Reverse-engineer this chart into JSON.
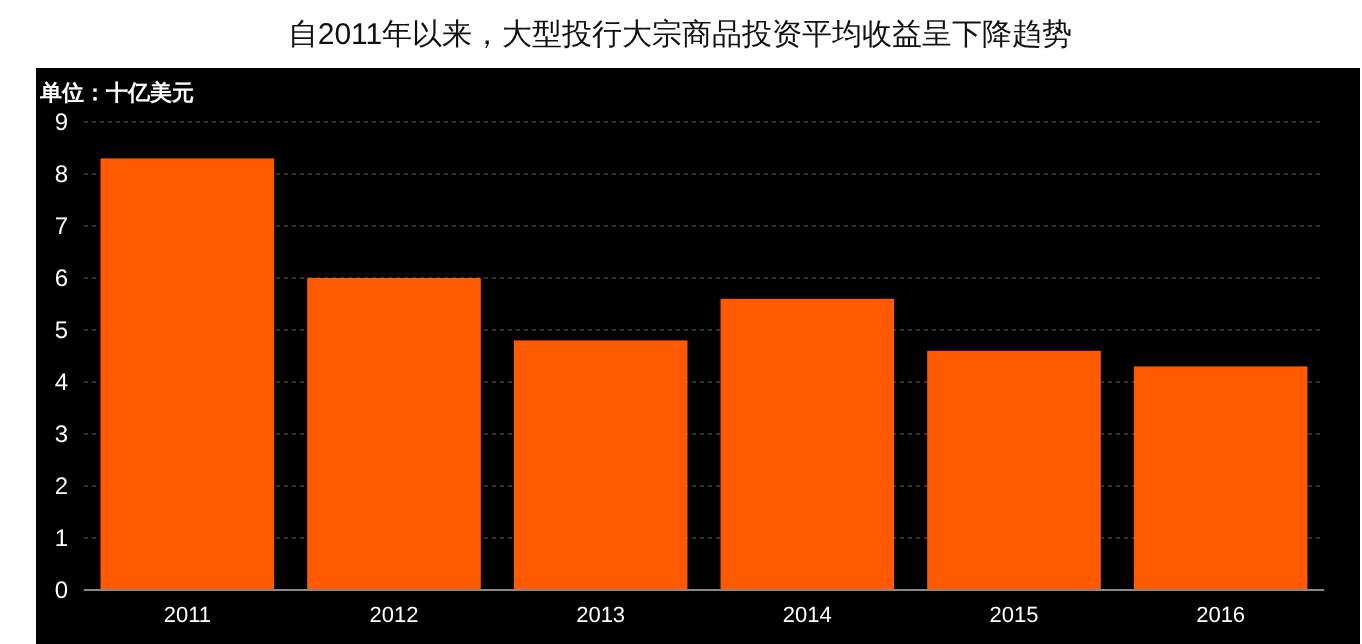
{
  "chart_data": {
    "type": "bar",
    "title": "自2011年以来，大型投行大宗商品投资平均收益呈下降趋势",
    "ylabel": "单位：十亿美元",
    "categories": [
      "2011",
      "2012",
      "2013",
      "2014",
      "2015",
      "2016"
    ],
    "values": [
      8.3,
      6.0,
      4.8,
      5.6,
      4.6,
      4.3
    ],
    "color": "#ff5a00",
    "ylim": [
      0,
      9
    ],
    "yticks": [
      0,
      1,
      2,
      3,
      4,
      5,
      6,
      7,
      8,
      9
    ],
    "grid": "y"
  }
}
